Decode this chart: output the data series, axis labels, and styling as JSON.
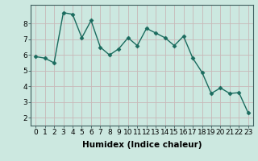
{
  "x": [
    0,
    1,
    2,
    3,
    4,
    5,
    6,
    7,
    8,
    9,
    10,
    11,
    12,
    13,
    14,
    15,
    16,
    17,
    18,
    19,
    20,
    21,
    22,
    23
  ],
  "y": [
    5.9,
    5.8,
    5.5,
    8.7,
    8.6,
    7.1,
    8.2,
    6.5,
    6.0,
    6.4,
    7.1,
    6.6,
    7.7,
    7.4,
    7.1,
    6.6,
    7.2,
    5.8,
    4.9,
    3.55,
    3.9,
    3.55,
    3.6,
    2.3
  ],
  "line_color": "#1a6b5e",
  "marker": "D",
  "markersize": 2.5,
  "linewidth": 1.0,
  "background_color": "#cce8e0",
  "grid_color": "#b8d8cf",
  "xlabel": "Humidex (Indice chaleur)",
  "xlim": [
    -0.5,
    23.5
  ],
  "ylim": [
    1.5,
    9.2
  ],
  "yticks": [
    2,
    3,
    4,
    5,
    6,
    7,
    8
  ],
  "xticks": [
    0,
    1,
    2,
    3,
    4,
    5,
    6,
    7,
    8,
    9,
    10,
    11,
    12,
    13,
    14,
    15,
    16,
    17,
    18,
    19,
    20,
    21,
    22,
    23
  ],
  "xlabel_fontsize": 7.5,
  "tick_fontsize": 6.5
}
